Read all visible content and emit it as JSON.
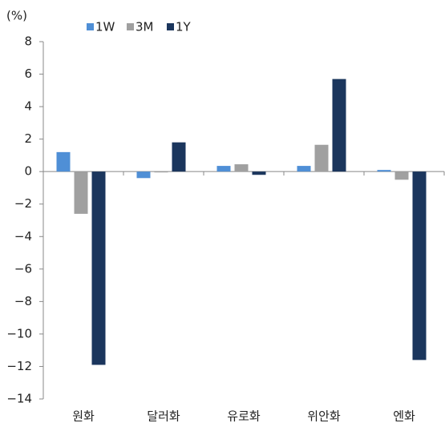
{
  "chart_data": {
    "type": "bar",
    "y_label": "(%)",
    "categories": [
      "원화",
      "달러화",
      "유로화",
      "위안화",
      "엔화"
    ],
    "series": [
      {
        "name": "1W",
        "color": "#4f8fd6",
        "values": [
          1.2,
          -0.4,
          0.35,
          0.35,
          0.1
        ]
      },
      {
        "name": "3M",
        "color": "#a0a0a0",
        "values": [
          -2.6,
          -0.05,
          0.45,
          1.65,
          -0.5
        ]
      },
      {
        "name": "1Y",
        "color": "#1b365d",
        "values": [
          -11.9,
          1.8,
          -0.2,
          5.7,
          -11.6
        ]
      }
    ],
    "ylim": [
      -14,
      8
    ],
    "yticks": [
      {
        "value": -14,
        "label": "−14"
      },
      {
        "value": -12,
        "label": "−12"
      },
      {
        "value": -10,
        "label": "−10"
      },
      {
        "value": -8,
        "label": "−8"
      },
      {
        "value": -6,
        "label": "−6"
      },
      {
        "value": -4,
        "label": "−4"
      },
      {
        "value": -2,
        "label": "−2"
      },
      0,
      2,
      4,
      6,
      8
    ],
    "grid": false,
    "legend": "top"
  }
}
